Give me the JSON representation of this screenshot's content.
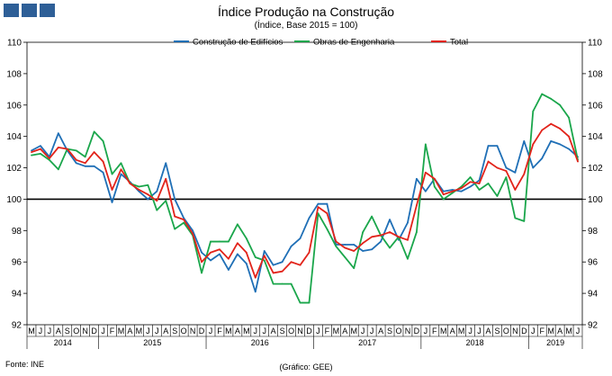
{
  "header": {
    "title": "Índice Produção na Construção",
    "subtitle": "(Índice, Base 2015 = 100)"
  },
  "footer": {
    "source": "Fonte: INE",
    "credit": "(Gráfico: GEE)"
  },
  "colors": {
    "construcao": "#1f6fb6",
    "obras": "#1aa64b",
    "total": "#e2231a",
    "logo": "#2e5f97"
  },
  "chart_data": {
    "type": "line",
    "ylim": [
      92,
      110
    ],
    "yticks": [
      92,
      94,
      96,
      98,
      100,
      102,
      104,
      106,
      108,
      110
    ],
    "reference_line": 100,
    "legend_position": "top",
    "x": [
      "M",
      "J",
      "J",
      "A",
      "S",
      "O",
      "N",
      "D",
      "J",
      "F",
      "M",
      "A",
      "M",
      "J",
      "J",
      "A",
      "S",
      "O",
      "N",
      "D",
      "J",
      "F",
      "M",
      "A",
      "M",
      "J",
      "J",
      "A",
      "S",
      "O",
      "N",
      "D",
      "J",
      "F",
      "M",
      "A",
      "M",
      "J",
      "J",
      "A",
      "S",
      "O",
      "N",
      "D",
      "J",
      "F",
      "M",
      "A",
      "M",
      "J",
      "J",
      "A",
      "S",
      "O",
      "N",
      "D",
      "J",
      "F",
      "M",
      "A",
      "M",
      "J"
    ],
    "years": [
      {
        "label": "2014",
        "start": 0,
        "end": 7
      },
      {
        "label": "2015",
        "start": 8,
        "end": 19
      },
      {
        "label": "2016",
        "start": 20,
        "end": 31
      },
      {
        "label": "2017",
        "start": 32,
        "end": 43
      },
      {
        "label": "2018",
        "start": 44,
        "end": 55
      },
      {
        "label": "2019",
        "start": 56,
        "end": 61
      }
    ],
    "series": [
      {
        "name": "Construção de Edifícios",
        "color_key": "construcao",
        "values": [
          103.1,
          103.4,
          102.7,
          104.2,
          103.1,
          102.3,
          102.1,
          102.1,
          101.7,
          99.8,
          101.6,
          101.1,
          100.5,
          100.0,
          100.5,
          102.3,
          100.0,
          98.8,
          98.0,
          96.6,
          96.1,
          96.5,
          95.5,
          96.5,
          95.9,
          94.1,
          96.7,
          95.8,
          96.0,
          97.0,
          97.5,
          98.8,
          99.7,
          99.7,
          97.1,
          97.1,
          97.1,
          96.7,
          96.8,
          97.3,
          98.7,
          97.4,
          98.5,
          101.3,
          100.5,
          101.3,
          100.5,
          100.6,
          100.5,
          100.8,
          101.2,
          103.4,
          103.4,
          102.0,
          101.7,
          103.7,
          102.0,
          102.6,
          103.7,
          103.5,
          103.2,
          102.7
        ]
      },
      {
        "name": "Obras de Engenharia",
        "color_key": "obras",
        "values": [
          102.8,
          102.9,
          102.5,
          101.9,
          103.2,
          103.1,
          102.7,
          104.3,
          103.7,
          101.6,
          102.3,
          101.0,
          100.8,
          100.9,
          99.3,
          99.9,
          98.1,
          98.5,
          97.7,
          95.3,
          97.3,
          97.3,
          97.3,
          98.4,
          97.5,
          96.3,
          96.1,
          94.6,
          94.6,
          94.6,
          93.4,
          93.4,
          99.1,
          98.1,
          97.0,
          96.3,
          95.6,
          97.9,
          98.9,
          97.7,
          96.9,
          97.6,
          96.2,
          97.9,
          103.5,
          100.8,
          100.0,
          100.4,
          100.8,
          101.4,
          100.6,
          101.0,
          100.2,
          101.4,
          98.8,
          98.6,
          105.6,
          106.7,
          106.4,
          106.0,
          105.2,
          102.5
        ]
      },
      {
        "name": "Total",
        "color_key": "total",
        "values": [
          103.0,
          103.2,
          102.6,
          103.3,
          103.2,
          102.5,
          102.3,
          103.0,
          102.4,
          100.6,
          101.9,
          101.0,
          100.6,
          100.3,
          99.9,
          101.3,
          98.9,
          98.7,
          97.8,
          96.0,
          96.6,
          96.8,
          96.2,
          97.2,
          96.6,
          95.0,
          96.4,
          95.3,
          95.4,
          96.0,
          95.8,
          96.6,
          99.5,
          99.1,
          97.3,
          96.9,
          96.7,
          97.2,
          97.6,
          97.7,
          97.9,
          97.6,
          97.4,
          99.6,
          101.7,
          101.3,
          100.3,
          100.5,
          100.7,
          101.1,
          101.0,
          102.4,
          102.0,
          101.8,
          100.6,
          101.6,
          103.5,
          104.4,
          104.8,
          104.5,
          104.0,
          102.4
        ]
      }
    ]
  }
}
